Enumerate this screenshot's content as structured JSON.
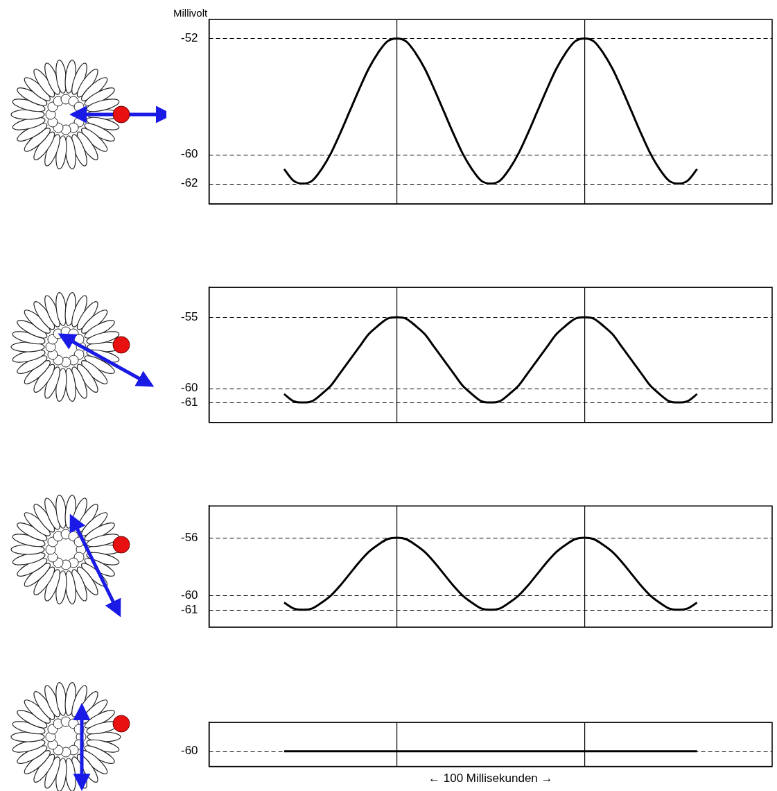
{
  "chart_data": [
    {
      "type": "line",
      "y_label": "Millivolt",
      "x": [
        40,
        45,
        50,
        55,
        60,
        65,
        70,
        75,
        80,
        85,
        90,
        95,
        100,
        105,
        110,
        115,
        120,
        125,
        130,
        135,
        140,
        145,
        150,
        155,
        160,
        165,
        170,
        175,
        180,
        185,
        190,
        195,
        200,
        205,
        210,
        215,
        220,
        225,
        230,
        235,
        240,
        245,
        250,
        255,
        260
      ],
      "values": [
        -61,
        -61.8,
        -62,
        -61.8,
        -61,
        -59.9,
        -58.5,
        -57,
        -55.5,
        -54.1,
        -53,
        -52.2,
        -52,
        -52.2,
        -53,
        -54.1,
        -55.5,
        -57,
        -58.5,
        -59.9,
        -61,
        -61.8,
        -62,
        -61.8,
        -61,
        -59.9,
        -58.5,
        -57,
        -55.5,
        -54.1,
        -53,
        -52.2,
        -52,
        -52.2,
        -53,
        -54.1,
        -55.5,
        -57,
        -58.5,
        -59.9,
        -61,
        -61.8,
        -62,
        -61.8,
        -61
      ],
      "color": "#000000",
      "xlim": [
        0,
        300
      ],
      "xticks": [
        100,
        200
      ],
      "ylim": [
        -63.4,
        -50.7
      ],
      "yticks": [
        -62,
        -60,
        -52
      ],
      "grid": true,
      "tick_labels": "y"
    },
    {
      "type": "line",
      "x": [
        40,
        45,
        50,
        55,
        60,
        65,
        70,
        75,
        80,
        85,
        90,
        95,
        100,
        105,
        110,
        115,
        120,
        125,
        130,
        135,
        140,
        145,
        150,
        155,
        160,
        165,
        170,
        175,
        180,
        185,
        190,
        195,
        200,
        205,
        210,
        215,
        220,
        225,
        230,
        235,
        240,
        245,
        250,
        255,
        260
      ],
      "values": [
        -60.4,
        -60.9,
        -61,
        -60.9,
        -60.4,
        -59.8,
        -58.9,
        -58,
        -57.1,
        -56.2,
        -55.6,
        -55.1,
        -55,
        -55.1,
        -55.6,
        -56.2,
        -57.1,
        -58,
        -58.9,
        -59.8,
        -60.4,
        -60.9,
        -61,
        -60.9,
        -60.4,
        -59.8,
        -58.9,
        -58,
        -57.1,
        -56.2,
        -55.6,
        -55.1,
        -55,
        -55.1,
        -55.6,
        -56.2,
        -57.1,
        -58,
        -58.9,
        -59.8,
        -60.4,
        -60.9,
        -61,
        -60.9,
        -60.4
      ],
      "color": "#000000",
      "xlim": [
        0,
        300
      ],
      "xticks": [
        100,
        200
      ],
      "ylim": [
        -62.4,
        -52.9
      ],
      "yticks": [
        -61,
        -60,
        -55
      ],
      "grid": true,
      "tick_labels": "y"
    },
    {
      "type": "line",
      "x": [
        40,
        45,
        50,
        55,
        60,
        65,
        70,
        75,
        80,
        85,
        90,
        95,
        100,
        105,
        110,
        115,
        120,
        125,
        130,
        135,
        140,
        145,
        150,
        155,
        160,
        165,
        170,
        175,
        180,
        185,
        190,
        195,
        200,
        205,
        210,
        215,
        220,
        225,
        230,
        235,
        240,
        245,
        250,
        255,
        260
      ],
      "values": [
        -60.5,
        -60.9,
        -61,
        -60.9,
        -60.5,
        -60,
        -59.3,
        -58.5,
        -57.7,
        -57,
        -56.5,
        -56.1,
        -56,
        -56.1,
        -56.5,
        -57,
        -57.7,
        -58.5,
        -59.3,
        -60,
        -60.5,
        -60.9,
        -61,
        -60.9,
        -60.5,
        -60,
        -59.3,
        -58.5,
        -57.7,
        -57,
        -56.5,
        -56.1,
        -56,
        -56.1,
        -56.5,
        -57,
        -57.7,
        -58.5,
        -59.3,
        -60,
        -60.5,
        -60.9,
        -61,
        -60.9,
        -60.5
      ],
      "color": "#000000",
      "xlim": [
        0,
        300
      ],
      "xticks": [
        100,
        200
      ],
      "ylim": [
        -62.2,
        -53.8
      ],
      "yticks": [
        -61,
        -60,
        -56
      ],
      "grid": true,
      "tick_labels": "y"
    },
    {
      "type": "line",
      "x_label": "← 100 Millisekunden →",
      "x": [
        40,
        60,
        80,
        100,
        120,
        140,
        160,
        180,
        200,
        220,
        240,
        260
      ],
      "values": [
        -60,
        -60,
        -60,
        -60,
        -60,
        -60,
        -60,
        -60,
        -60,
        -60,
        -60,
        -60
      ],
      "color": "#000000",
      "xlim": [
        0,
        300
      ],
      "xticks": [
        100,
        200
      ],
      "ylim": [
        -60.9,
        -58.3
      ],
      "yticks": [
        -60
      ],
      "grid": true,
      "tick_labels": "y"
    }
  ]
}
